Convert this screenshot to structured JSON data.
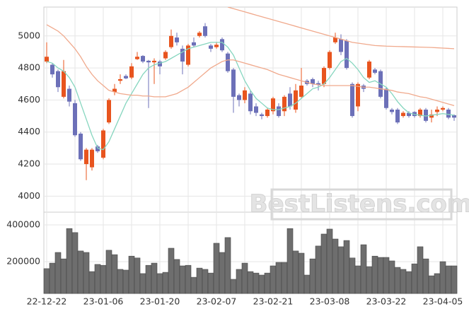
{
  "chart_data": [
    {
      "type": "candlestick",
      "up_color": "#e8541e",
      "down_color": "#6c70b8",
      "ylim": [
        3900,
        5180
      ],
      "yticks": [
        4000,
        4200,
        4400,
        4600,
        4800,
        5000
      ],
      "grid": true,
      "watermark": "BestListens.com",
      "open": [
        4840,
        4820,
        4780,
        4620,
        4670,
        4580,
        4390,
        4200,
        4180,
        4310,
        4240,
        4460,
        4650,
        4720,
        4750,
        4740,
        4855,
        4875,
        4845,
        4835,
        4840,
        4860,
        4930,
        4990,
        4920,
        4820,
        4960,
        5000,
        5060,
        4940,
        4930,
        4980,
        4890,
        4790,
        4630,
        4600,
        4640,
        4560,
        4510,
        4500,
        4530,
        4560,
        4530,
        4640,
        4540,
        4620,
        4720,
        4730,
        4705,
        4700,
        4800,
        4960,
        4980,
        4970,
        4700,
        4560,
        4690,
        4740,
        4790,
        4780,
        4670,
        4540,
        4540,
        4500,
        4520,
        4525,
        4500,
        4540,
        4490,
        4525,
        4540,
        4540,
        4505
      ],
      "high": [
        4960,
        4830,
        4790,
        4850,
        4690,
        4600,
        4400,
        4300,
        4300,
        4320,
        4420,
        4610,
        4700,
        4760,
        4760,
        4830,
        4900,
        4880,
        4850,
        4860,
        4850,
        4910,
        5040,
        5020,
        4940,
        4950,
        4990,
        5030,
        5080,
        4950,
        4960,
        4990,
        4900,
        4800,
        4640,
        4680,
        4660,
        4580,
        4520,
        4550,
        4620,
        4580,
        4630,
        4680,
        4700,
        4800,
        4730,
        4740,
        4720,
        4810,
        4910,
        5020,
        5010,
        4980,
        4710,
        4710,
        4700,
        4850,
        4800,
        4790,
        4680,
        4550,
        4550,
        4530,
        4530,
        4530,
        4550,
        4550,
        4540,
        4560,
        4560,
        4550,
        4510
      ],
      "low": [
        4830,
        4740,
        4650,
        4610,
        4560,
        4370,
        4220,
        4100,
        4160,
        4270,
        4230,
        4450,
        4630,
        4700,
        4730,
        4730,
        4850,
        4830,
        4550,
        4700,
        4760,
        4850,
        4920,
        4940,
        4760,
        4810,
        4930,
        4990,
        4990,
        4900,
        4920,
        4900,
        4770,
        4520,
        4560,
        4580,
        4510,
        4500,
        4480,
        4490,
        4510,
        4490,
        4500,
        4540,
        4520,
        4610,
        4690,
        4680,
        4660,
        4680,
        4790,
        4950,
        4880,
        4790,
        4490,
        4530,
        4650,
        4730,
        4760,
        4610,
        4540,
        4510,
        4450,
        4490,
        4490,
        4490,
        4490,
        4460,
        4460,
        4500,
        4530,
        4480,
        4470
      ],
      "close": [
        4870,
        4760,
        4680,
        4780,
        4590,
        4380,
        4230,
        4290,
        4290,
        4280,
        4410,
        4600,
        4670,
        4730,
        4735,
        4810,
        4870,
        4840,
        4835,
        4845,
        4810,
        4900,
        5000,
        4960,
        4840,
        4940,
        4940,
        5020,
        5000,
        4920,
        4945,
        4910,
        4780,
        4620,
        4600,
        4660,
        4530,
        4520,
        4500,
        4540,
        4610,
        4500,
        4620,
        4560,
        4660,
        4690,
        4700,
        4700,
        4695,
        4800,
        4900,
        4990,
        4900,
        4800,
        4500,
        4700,
        4670,
        4840,
        4770,
        4620,
        4550,
        4525,
        4460,
        4520,
        4500,
        4500,
        4540,
        4470,
        4510,
        4540,
        4550,
        4490,
        4490
      ],
      "series": [
        {
          "color": "#86d6bf",
          "values": [
            4840,
            4830,
            4800,
            4780,
            4740,
            4680,
            4580,
            4480,
            4380,
            4300,
            4290,
            4340,
            4420,
            4500,
            4580,
            4640,
            4700,
            4760,
            4800,
            4820,
            4830,
            4840,
            4860,
            4880,
            4900,
            4920,
            4930,
            4940,
            4950,
            4960,
            4960,
            4960,
            4930,
            4880,
            4800,
            4720,
            4660,
            4610,
            4580,
            4550,
            4540,
            4540,
            4550,
            4560,
            4580,
            4610,
            4640,
            4670,
            4680,
            4700,
            4740,
            4790,
            4840,
            4860,
            4830,
            4790,
            4740,
            4710,
            4720,
            4700,
            4680,
            4640,
            4590,
            4550,
            4520,
            4510,
            4505,
            4500,
            4505,
            4510,
            4515,
            4510,
            4505
          ]
        },
        {
          "color": "#f0a98c",
          "values": [
            5070,
            5050,
            5030,
            5000,
            4960,
            4920,
            4870,
            4810,
            4760,
            4720,
            4690,
            4660,
            4650,
            4640,
            4635,
            4630,
            4630,
            4625,
            4625,
            4620,
            4620,
            4620,
            4630,
            4640,
            4660,
            4680,
            4710,
            4740,
            4770,
            4800,
            4820,
            4840,
            4850,
            4850,
            4840,
            4830,
            4820,
            4810,
            4800,
            4790,
            4775,
            4760,
            4750,
            4740,
            4730,
            4720,
            4710,
            4700,
            4695,
            4690,
            4690,
            4690,
            4690,
            4690,
            4690,
            4685,
            4680,
            4680,
            4675,
            4670,
            4665,
            4660,
            4650,
            4645,
            4640,
            4630,
            4620,
            4615,
            4605,
            4595,
            4585,
            4575,
            4565
          ]
        },
        {
          "color": "#f0a98c",
          "values": [
            null,
            null,
            null,
            null,
            null,
            null,
            null,
            null,
            null,
            null,
            null,
            null,
            null,
            null,
            null,
            null,
            null,
            null,
            null,
            null,
            null,
            null,
            null,
            null,
            null,
            null,
            null,
            null,
            null,
            null,
            null,
            null,
            5180,
            5170,
            5160,
            5150,
            5140,
            5130,
            5120,
            5110,
            5100,
            5090,
            5080,
            5070,
            5060,
            5050,
            5040,
            5030,
            5020,
            5010,
            5000,
            4990,
            4980,
            4970,
            4960,
            4955,
            4950,
            4945,
            4940,
            4938,
            4936,
            4935,
            4934,
            4933,
            4932,
            4931,
            4930,
            4929,
            4928,
            4926,
            4924,
            4922,
            4920
          ]
        }
      ]
    },
    {
      "type": "bar",
      "color": "#6e6e6e",
      "ylim": [
        27000,
        469000
      ],
      "yticks": [
        200000,
        400000
      ],
      "grid": true,
      "categories": [
        "22-12-22",
        null,
        null,
        null,
        null,
        null,
        null,
        null,
        null,
        null,
        "23-01-06",
        null,
        null,
        null,
        null,
        null,
        null,
        null,
        null,
        null,
        "23-01-20",
        null,
        null,
        null,
        null,
        null,
        null,
        null,
        null,
        null,
        "23-02-07",
        null,
        null,
        null,
        null,
        null,
        null,
        null,
        null,
        null,
        "23-02-21",
        null,
        null,
        null,
        null,
        null,
        null,
        null,
        null,
        null,
        "23-03-08",
        null,
        null,
        null,
        null,
        null,
        null,
        null,
        null,
        null,
        "23-03-22",
        null,
        null,
        null,
        null,
        null,
        null,
        null,
        null,
        null,
        "23-04-05",
        null,
        null
      ],
      "values": [
        162000,
        192000,
        250000,
        215000,
        380000,
        358000,
        258000,
        250000,
        146000,
        185000,
        180000,
        262000,
        238000,
        158000,
        154000,
        230000,
        220000,
        135000,
        180000,
        192000,
        135000,
        142000,
        273000,
        212000,
        177000,
        180000,
        115000,
        165000,
        158000,
        138000,
        300000,
        250000,
        331000,
        104000,
        158000,
        192000,
        146000,
        138000,
        127000,
        138000,
        177000,
        196000,
        196000,
        380000,
        258000,
        246000,
        127000,
        215000,
        285000,
        350000,
        377000,
        323000,
        281000,
        315000,
        220000,
        177000,
        292000,
        173000,
        230000,
        223000,
        223000,
        204000,
        169000,
        158000,
        146000,
        188000,
        281000,
        215000,
        123000,
        135000,
        200000,
        177000,
        177000
      ]
    }
  ]
}
